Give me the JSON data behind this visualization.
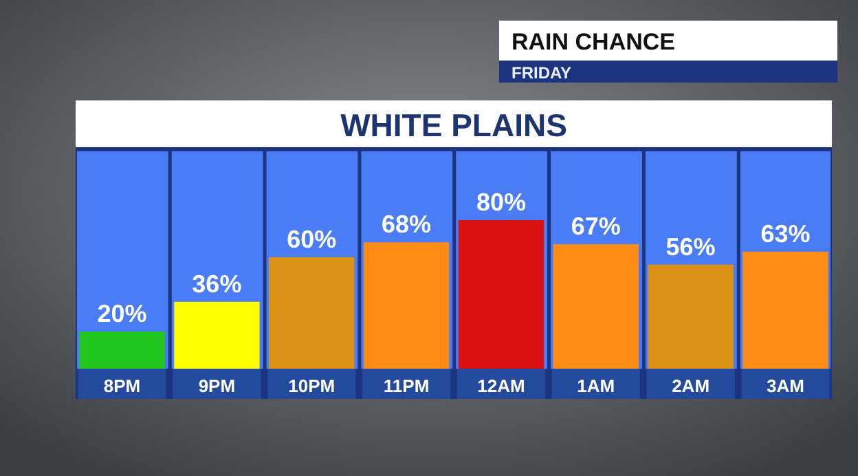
{
  "chart_data": {
    "type": "bar",
    "title": "RAIN CHANCE",
    "subtitle": "FRIDAY",
    "annotations": [
      "WHITE PLAINS"
    ],
    "categories": [
      "8PM",
      "9PM",
      "10PM",
      "11PM",
      "12AM",
      "1AM",
      "2AM",
      "3AM"
    ],
    "values": [
      20,
      36,
      60,
      68,
      80,
      67,
      56,
      63
    ],
    "colors": [
      "#22c81e",
      "#ffff00",
      "#dc9214",
      "#ff8c14",
      "#dc1010",
      "#ff8c14",
      "#dc9214",
      "#ff8c14"
    ],
    "value_labels": [
      "20%",
      "36%",
      "60%",
      "68%",
      "80%",
      "67%",
      "56%",
      "63%"
    ],
    "ylim": [
      0,
      117
    ],
    "bands": [
      {
        "axis": "y",
        "from": 0,
        "to": 117,
        "color": "#4a7cf5"
      }
    ]
  }
}
